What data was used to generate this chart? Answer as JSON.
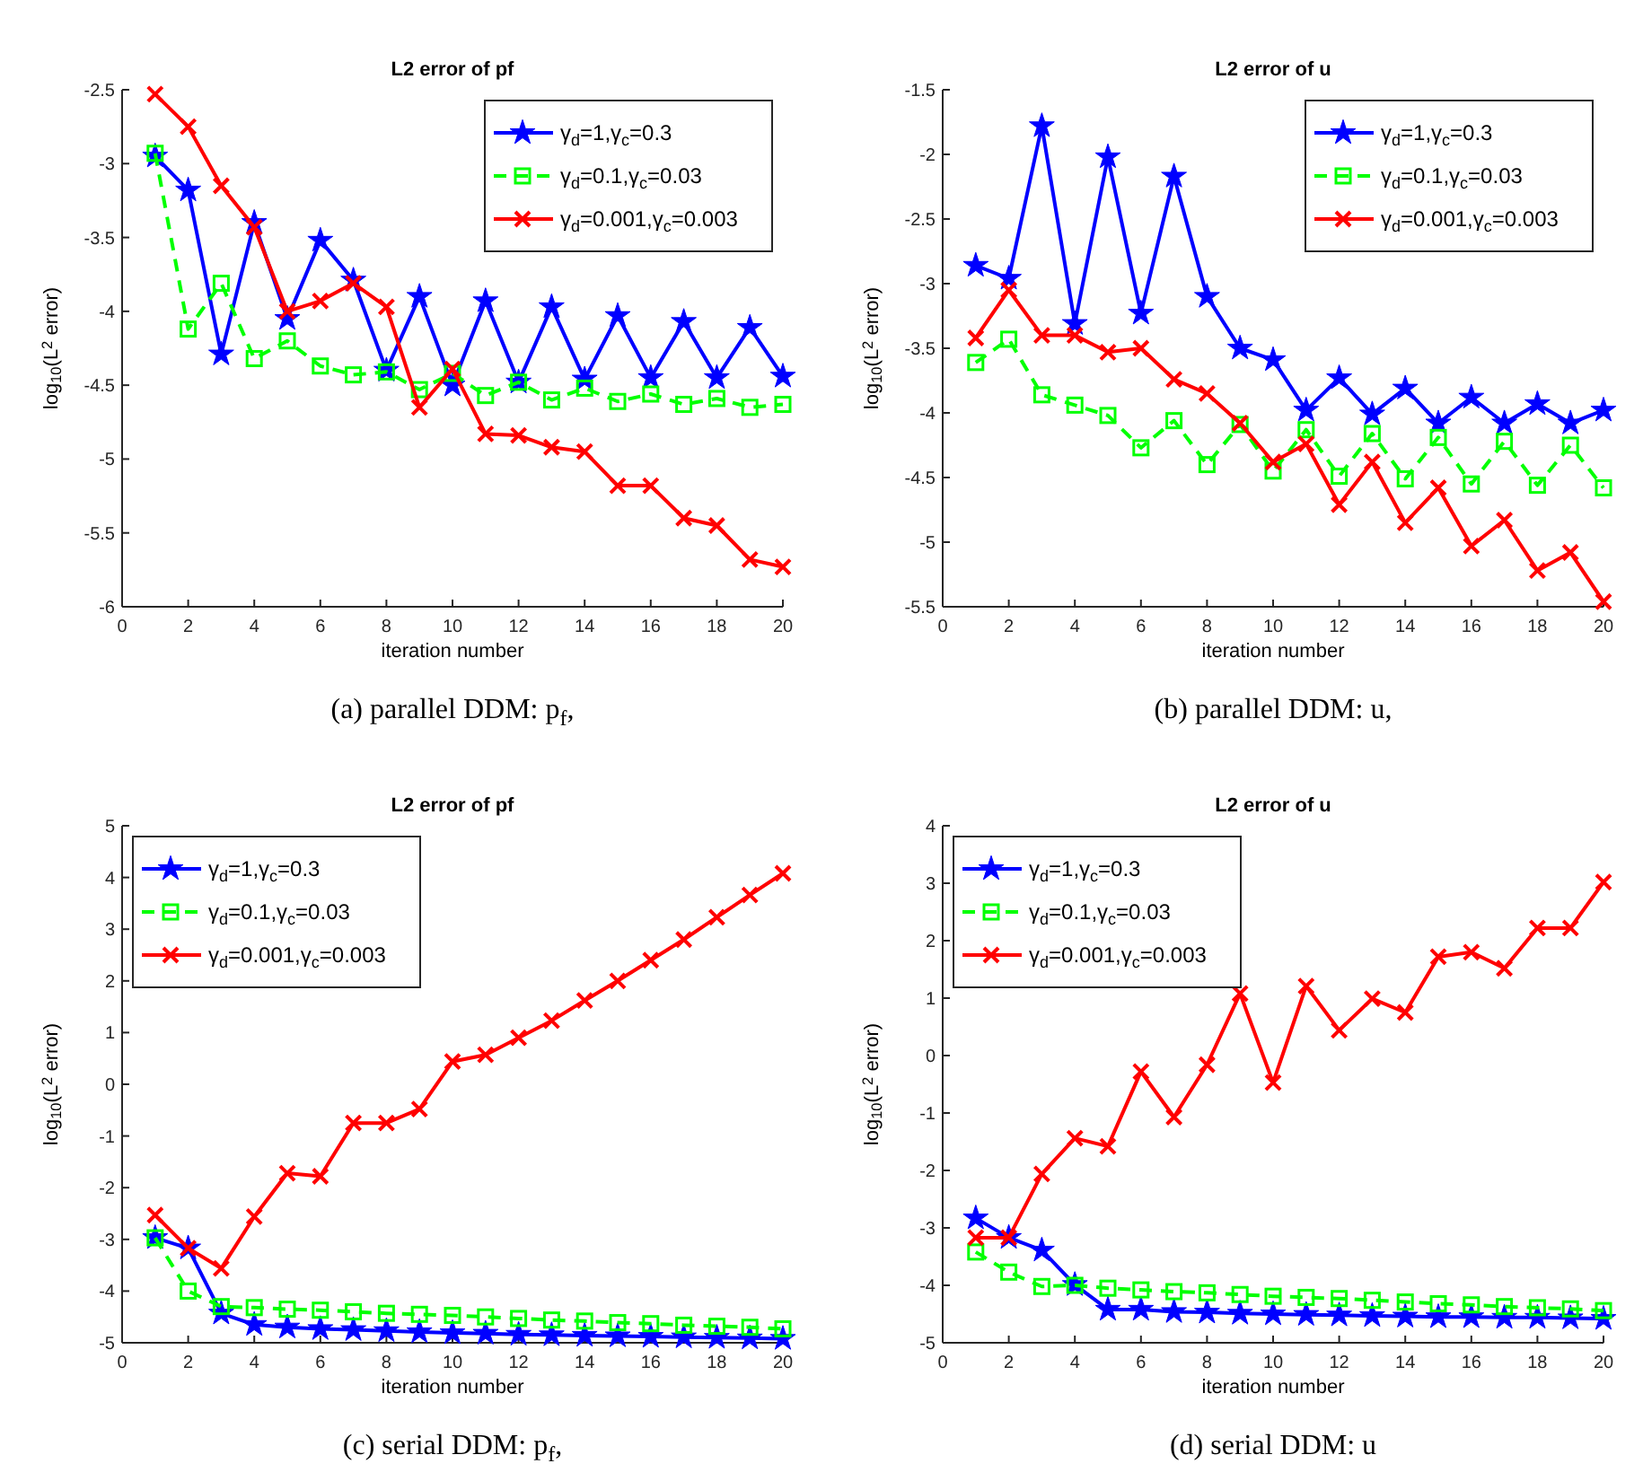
{
  "chart_data": [
    {
      "type": "line",
      "title": "L2 error of pf",
      "xlabel": "iteration number",
      "ylabel": "log$_{10}$(L$^{2}$ error)",
      "annotations": [
        "(a) parallel DDM: p$_{f}$,"
      ],
      "x": [
        1,
        2,
        3,
        4,
        5,
        6,
        7,
        8,
        9,
        10,
        11,
        12,
        13,
        14,
        15,
        16,
        17,
        18,
        19,
        20
      ],
      "xlim": [
        0,
        20
      ],
      "xticks": [
        0,
        2,
        4,
        6,
        8,
        10,
        12,
        14,
        16,
        18,
        20
      ],
      "ylim": [
        -6,
        -2.5
      ],
      "yticks": [
        -6,
        -5.5,
        -5,
        -4.5,
        -4,
        -3.5,
        -3,
        -2.5
      ],
      "legend": "top right",
      "grid": false,
      "series": [
        {
          "name": "γ$_{d}$=1,γ$_{c}$=0.3",
          "color": "#0000ff",
          "marker": "star",
          "line_style": "solid",
          "values": [
            -2.95,
            -3.18,
            -4.29,
            -3.4,
            -4.05,
            -3.52,
            -3.79,
            -4.4,
            -3.9,
            -4.5,
            -3.93,
            -4.48,
            -3.97,
            -4.46,
            -4.03,
            -4.45,
            -4.07,
            -4.45,
            -4.11,
            -4.44
          ]
        },
        {
          "name": "γ$_{d}$=0.1,γ$_{c}$=0.03",
          "color": "#00ff00",
          "marker": "square",
          "line_style": "dashed",
          "values": [
            -2.93,
            -4.12,
            -3.81,
            -4.32,
            -4.2,
            -4.37,
            -4.43,
            -4.41,
            -4.53,
            -4.42,
            -4.57,
            -4.48,
            -4.6,
            -4.52,
            -4.61,
            -4.56,
            -4.63,
            -4.59,
            -4.65,
            -4.63
          ]
        },
        {
          "name": "γ$_{d}$=0.001,γ$_{c}$=0.003",
          "color": "#ff0000",
          "marker": "cross",
          "line_style": "solid",
          "values": [
            -2.53,
            -2.75,
            -3.15,
            -3.43,
            -4.0,
            -3.93,
            -3.81,
            -3.97,
            -4.65,
            -4.39,
            -4.83,
            -4.84,
            -4.92,
            -4.95,
            -5.18,
            -5.18,
            -5.4,
            -5.45,
            -5.68,
            -5.73
          ]
        }
      ]
    },
    {
      "type": "line",
      "title": "L2 error of u",
      "xlabel": "iteration number",
      "ylabel": "log$_{10}$(L$^{2}$ error)",
      "annotations": [
        "(b) parallel DDM: u,"
      ],
      "x": [
        1,
        2,
        3,
        4,
        5,
        6,
        7,
        8,
        9,
        10,
        11,
        12,
        13,
        14,
        15,
        16,
        17,
        18,
        19,
        20
      ],
      "xlim": [
        0,
        20
      ],
      "xticks": [
        0,
        2,
        4,
        6,
        8,
        10,
        12,
        14,
        16,
        18,
        20
      ],
      "ylim": [
        -5.5,
        -1.5
      ],
      "yticks": [
        -5.5,
        -5,
        -4.5,
        -4,
        -3.5,
        -3,
        -2.5,
        -2,
        -1.5
      ],
      "legend": "top right",
      "grid": false,
      "series": [
        {
          "name": "γ$_{d}$=1,γ$_{c}$=0.3",
          "color": "#0000ff",
          "marker": "star",
          "line_style": "solid",
          "values": [
            -2.86,
            -2.96,
            -1.78,
            -3.31,
            -2.02,
            -3.23,
            -2.17,
            -3.1,
            -3.5,
            -3.59,
            -3.98,
            -3.73,
            -4.01,
            -3.81,
            -4.08,
            -3.88,
            -4.08,
            -3.93,
            -4.08,
            -3.98
          ]
        },
        {
          "name": "γ$_{d}$=0.1,γ$_{c}$=0.03",
          "color": "#00ff00",
          "marker": "square",
          "line_style": "dashed",
          "values": [
            -3.61,
            -3.43,
            -3.86,
            -3.94,
            -4.02,
            -4.27,
            -4.06,
            -4.4,
            -4.09,
            -4.45,
            -4.13,
            -4.49,
            -4.16,
            -4.51,
            -4.19,
            -4.55,
            -4.22,
            -4.56,
            -4.25,
            -4.58
          ]
        },
        {
          "name": "γ$_{d}$=0.001,γ$_{c}$=0.003",
          "color": "#ff0000",
          "marker": "cross",
          "line_style": "solid",
          "values": [
            -3.42,
            -3.05,
            -3.4,
            -3.4,
            -3.53,
            -3.5,
            -3.74,
            -3.85,
            -4.08,
            -4.38,
            -4.24,
            -4.71,
            -4.38,
            -4.85,
            -4.58,
            -5.03,
            -4.83,
            -5.22,
            -5.08,
            -5.46
          ]
        }
      ]
    },
    {
      "type": "line",
      "title": "L2 error of pf",
      "xlabel": "iteration number",
      "ylabel": "log$_{10}$(L$^{2}$ error)",
      "annotations": [
        "(c) serial DDM: p$_{f}$,"
      ],
      "x": [
        1,
        2,
        3,
        4,
        5,
        6,
        7,
        8,
        9,
        10,
        11,
        12,
        13,
        14,
        15,
        16,
        17,
        18,
        19,
        20
      ],
      "xlim": [
        0,
        20
      ],
      "xticks": [
        0,
        2,
        4,
        6,
        8,
        10,
        12,
        14,
        16,
        18,
        20
      ],
      "ylim": [
        -5,
        5
      ],
      "yticks": [
        -5,
        -4,
        -3,
        -2,
        -1,
        0,
        1,
        2,
        3,
        4,
        5
      ],
      "legend": "top left",
      "grid": false,
      "series": [
        {
          "name": "γ$_{d}$=1,γ$_{c}$=0.3",
          "color": "#0000ff",
          "marker": "star",
          "line_style": "solid",
          "values": [
            -2.97,
            -3.17,
            -4.43,
            -4.65,
            -4.7,
            -4.73,
            -4.75,
            -4.77,
            -4.79,
            -4.81,
            -4.82,
            -4.84,
            -4.85,
            -4.86,
            -4.87,
            -4.88,
            -4.89,
            -4.9,
            -4.91,
            -4.92
          ]
        },
        {
          "name": "γ$_{d}$=0.1,γ$_{c}$=0.03",
          "color": "#00ff00",
          "marker": "square",
          "line_style": "dashed",
          "values": [
            -2.97,
            -4.0,
            -4.3,
            -4.32,
            -4.35,
            -4.37,
            -4.4,
            -4.43,
            -4.45,
            -4.47,
            -4.5,
            -4.53,
            -4.56,
            -4.58,
            -4.61,
            -4.63,
            -4.66,
            -4.68,
            -4.7,
            -4.73
          ]
        },
        {
          "name": "γ$_{d}$=0.001,γ$_{c}$=0.003",
          "color": "#ff0000",
          "marker": "cross",
          "line_style": "solid",
          "values": [
            -2.53,
            -3.17,
            -3.56,
            -2.56,
            -1.72,
            -1.78,
            -0.75,
            -0.75,
            -0.48,
            0.44,
            0.57,
            0.9,
            1.23,
            1.62,
            2.0,
            2.4,
            2.8,
            3.23,
            3.66,
            4.08
          ]
        }
      ]
    },
    {
      "type": "line",
      "title": "L2 error of u",
      "xlabel": "iteration number",
      "ylabel": "log$_{10}$(L$^{2}$ error)",
      "annotations": [
        "(d) serial DDM: u"
      ],
      "x": [
        1,
        2,
        3,
        4,
        5,
        6,
        7,
        8,
        9,
        10,
        11,
        12,
        13,
        14,
        15,
        16,
        17,
        18,
        19,
        20
      ],
      "xlim": [
        0,
        20
      ],
      "xticks": [
        0,
        2,
        4,
        6,
        8,
        10,
        12,
        14,
        16,
        18,
        20
      ],
      "ylim": [
        -5,
        4
      ],
      "yticks": [
        -5,
        -4,
        -3,
        -2,
        -1,
        0,
        1,
        2,
        3,
        4
      ],
      "legend": "top left",
      "grid": false,
      "series": [
        {
          "name": "γ$_{d}$=1,γ$_{c}$=0.3",
          "color": "#0000ff",
          "marker": "star",
          "line_style": "solid",
          "values": [
            -2.83,
            -3.17,
            -3.39,
            -3.99,
            -4.42,
            -4.42,
            -4.46,
            -4.47,
            -4.49,
            -4.5,
            -4.51,
            -4.52,
            -4.53,
            -4.54,
            -4.55,
            -4.55,
            -4.56,
            -4.56,
            -4.57,
            -4.58
          ]
        },
        {
          "name": "γ$_{d}$=0.1,γ$_{c}$=0.03",
          "color": "#00ff00",
          "marker": "square",
          "line_style": "dashed",
          "values": [
            -3.42,
            -3.77,
            -4.02,
            -4.0,
            -4.05,
            -4.08,
            -4.11,
            -4.13,
            -4.16,
            -4.19,
            -4.21,
            -4.23,
            -4.26,
            -4.29,
            -4.32,
            -4.34,
            -4.37,
            -4.39,
            -4.41,
            -4.44
          ]
        },
        {
          "name": "γ$_{d}$=0.001,γ$_{c}$=0.003",
          "color": "#ff0000",
          "marker": "cross",
          "line_style": "solid",
          "values": [
            -3.17,
            -3.17,
            -2.06,
            -1.44,
            -1.58,
            -0.28,
            -1.07,
            -0.16,
            1.08,
            -0.47,
            1.21,
            0.44,
            0.99,
            0.75,
            1.72,
            1.8,
            1.52,
            2.22,
            2.22,
            3.02
          ]
        }
      ]
    }
  ]
}
